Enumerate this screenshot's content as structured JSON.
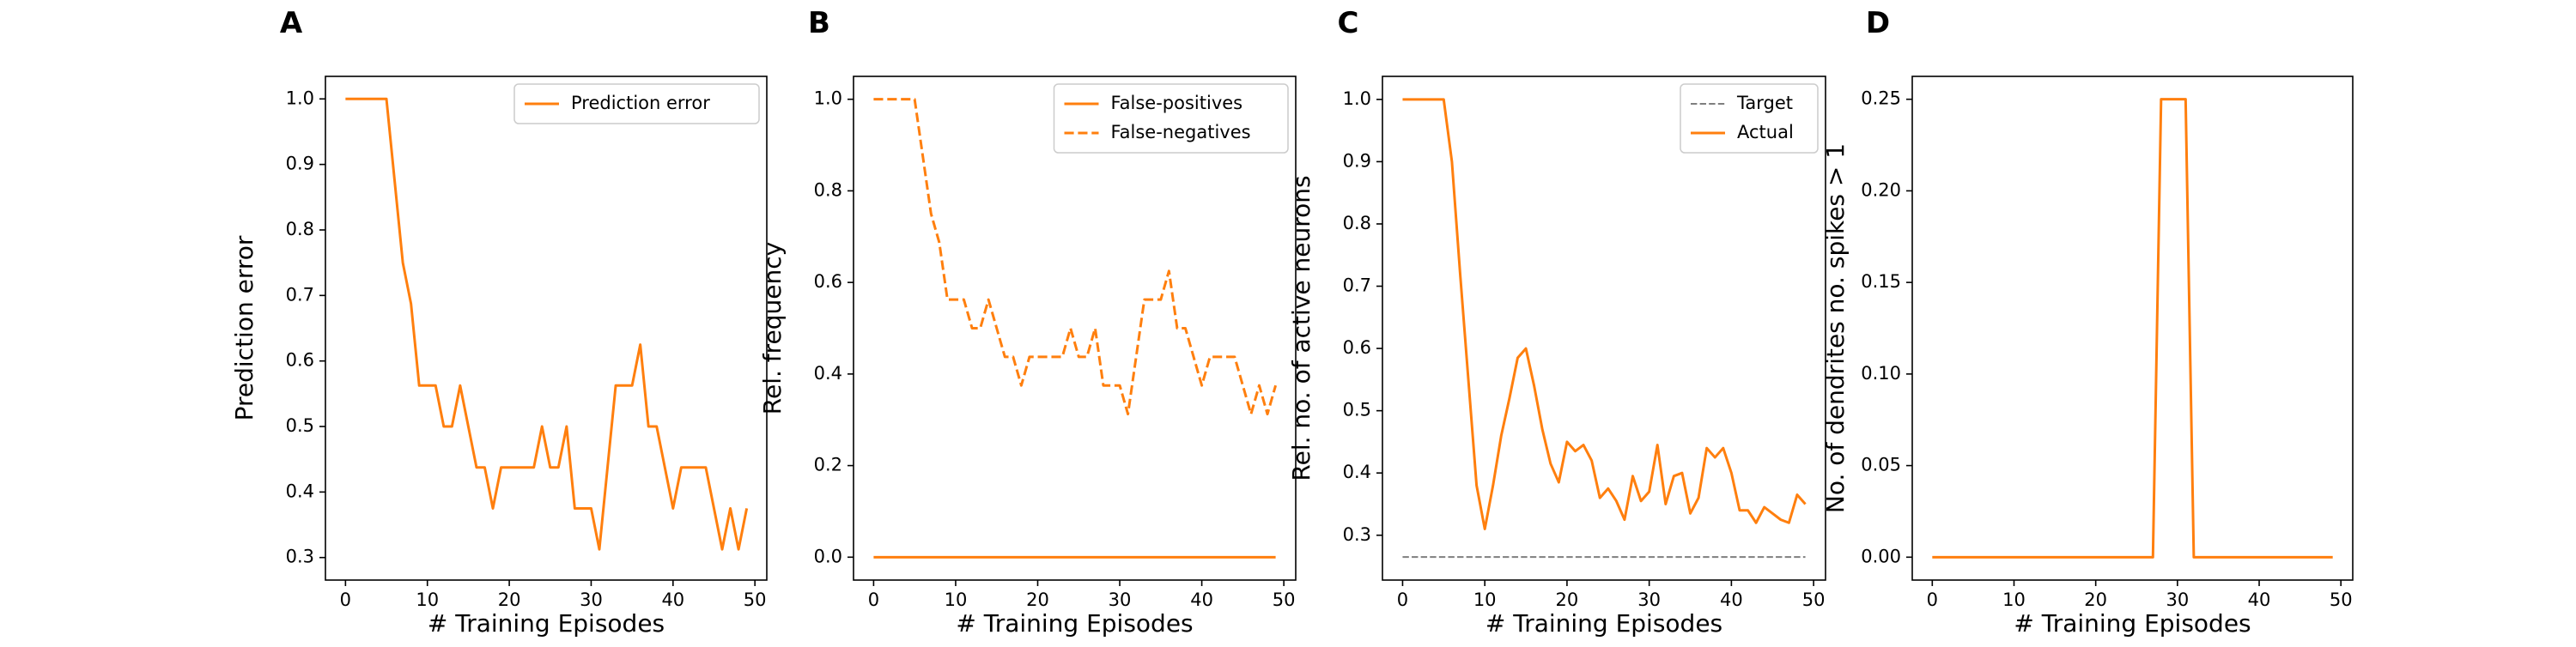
{
  "chart_data": [
    {
      "type": "line",
      "title": "A",
      "xlabel": "# Training Episodes",
      "ylabel": "Prediction error",
      "xlim": [
        -2.45,
        51.45
      ],
      "ylim": [
        0.2656,
        1.0344
      ],
      "xticks": [
        0,
        10,
        20,
        30,
        40,
        50
      ],
      "yticks": [
        0.3,
        0.4,
        0.5,
        0.6,
        0.7,
        0.8,
        0.9,
        {
          "value": 1,
          "label": "1.0"
        }
      ],
      "legend": "upper right",
      "x": [
        0,
        1,
        2,
        3,
        4,
        5,
        6,
        7,
        8,
        9,
        10,
        11,
        12,
        13,
        14,
        15,
        16,
        17,
        18,
        19,
        20,
        21,
        22,
        23,
        24,
        25,
        26,
        27,
        28,
        29,
        30,
        31,
        32,
        33,
        34,
        35,
        36,
        37,
        38,
        39,
        40,
        41,
        42,
        43,
        44,
        45,
        46,
        47,
        48,
        49
      ],
      "series": [
        {
          "name": "Prediction error",
          "color": "#ff7f0e",
          "linestyle": "solid",
          "linewidth": 3,
          "values": [
            1,
            1,
            1,
            1,
            1,
            1,
            0.875,
            0.75,
            0.6875,
            0.5625,
            0.5625,
            0.5625,
            0.5,
            0.5,
            0.5625,
            0.5,
            0.4375,
            0.4375,
            0.375,
            0.4375,
            0.4375,
            0.4375,
            0.4375,
            0.4375,
            0.5,
            0.4375,
            0.4375,
            0.5,
            0.375,
            0.375,
            0.375,
            0.3125,
            0.4375,
            0.5625,
            0.5625,
            0.5625,
            0.625,
            0.5,
            0.5,
            0.4375,
            0.375,
            0.4375,
            0.4375,
            0.4375,
            0.4375,
            0.375,
            0.3125,
            0.375,
            0.3125,
            0.375
          ]
        }
      ]
    },
    {
      "type": "line",
      "title": "B",
      "xlabel": "# Training Episodes",
      "ylabel": "Rel. frequency",
      "xlim": [
        -2.45,
        51.45
      ],
      "ylim": [
        -0.05,
        1.05
      ],
      "xticks": [
        0,
        10,
        20,
        30,
        40,
        50
      ],
      "yticks": [
        {
          "value": 0,
          "label": "0.0"
        },
        0.2,
        0.4,
        0.6,
        0.8,
        {
          "value": 1,
          "label": "1.0"
        }
      ],
      "legend": "upper right",
      "x": [
        0,
        1,
        2,
        3,
        4,
        5,
        6,
        7,
        8,
        9,
        10,
        11,
        12,
        13,
        14,
        15,
        16,
        17,
        18,
        19,
        20,
        21,
        22,
        23,
        24,
        25,
        26,
        27,
        28,
        29,
        30,
        31,
        32,
        33,
        34,
        35,
        36,
        37,
        38,
        39,
        40,
        41,
        42,
        43,
        44,
        45,
        46,
        47,
        48,
        49
      ],
      "series": [
        {
          "name": "False-positives",
          "color": "#ff7f0e",
          "linestyle": "solid",
          "linewidth": 3,
          "values": [
            0,
            0,
            0,
            0,
            0,
            0,
            0,
            0,
            0,
            0,
            0,
            0,
            0,
            0,
            0,
            0,
            0,
            0,
            0,
            0,
            0,
            0,
            0,
            0,
            0,
            0,
            0,
            0,
            0,
            0,
            0,
            0,
            0,
            0,
            0,
            0,
            0,
            0,
            0,
            0,
            0,
            0,
            0,
            0,
            0,
            0,
            0,
            0,
            0,
            0
          ]
        },
        {
          "name": "False-negatives",
          "color": "#ff7f0e",
          "linestyle": "dashed",
          "linewidth": 3,
          "values": [
            1,
            1,
            1,
            1,
            1,
            1,
            0.875,
            0.75,
            0.6875,
            0.5625,
            0.5625,
            0.5625,
            0.5,
            0.5,
            0.5625,
            0.5,
            0.4375,
            0.4375,
            0.375,
            0.4375,
            0.4375,
            0.4375,
            0.4375,
            0.4375,
            0.5,
            0.4375,
            0.4375,
            0.5,
            0.375,
            0.375,
            0.375,
            0.3125,
            0.4375,
            0.5625,
            0.5625,
            0.5625,
            0.625,
            0.5,
            0.5,
            0.4375,
            0.375,
            0.4375,
            0.4375,
            0.4375,
            0.4375,
            0.375,
            0.3125,
            0.375,
            0.3125,
            0.375
          ]
        }
      ]
    },
    {
      "type": "line",
      "title": "C",
      "xlabel": "# Training Episodes",
      "ylabel": "Rel. no. of active neurons",
      "xlim": [
        -2.45,
        51.45
      ],
      "ylim": [
        0.228,
        1.037
      ],
      "xticks": [
        0,
        10,
        20,
        30,
        40,
        50
      ],
      "yticks": [
        0.3,
        0.4,
        0.5,
        0.6,
        0.7,
        0.8,
        0.9,
        {
          "value": 1,
          "label": "1.0"
        }
      ],
      "legend": "upper right",
      "x": [
        0,
        1,
        2,
        3,
        4,
        5,
        6,
        7,
        8,
        9,
        10,
        11,
        12,
        13,
        14,
        15,
        16,
        17,
        18,
        19,
        20,
        21,
        22,
        23,
        24,
        25,
        26,
        27,
        28,
        29,
        30,
        31,
        32,
        33,
        34,
        35,
        36,
        37,
        38,
        39,
        40,
        41,
        42,
        43,
        44,
        45,
        46,
        47,
        48,
        49
      ],
      "series": [
        {
          "name": "Target",
          "color": "#7f7f7f",
          "linestyle": "dashed",
          "linewidth": 2,
          "values": [
            0.265,
            0.265,
            0.265,
            0.265,
            0.265,
            0.265,
            0.265,
            0.265,
            0.265,
            0.265,
            0.265,
            0.265,
            0.265,
            0.265,
            0.265,
            0.265,
            0.265,
            0.265,
            0.265,
            0.265,
            0.265,
            0.265,
            0.265,
            0.265,
            0.265,
            0.265,
            0.265,
            0.265,
            0.265,
            0.265,
            0.265,
            0.265,
            0.265,
            0.265,
            0.265,
            0.265,
            0.265,
            0.265,
            0.265,
            0.265,
            0.265,
            0.265,
            0.265,
            0.265,
            0.265,
            0.265,
            0.265,
            0.265,
            0.265,
            0.265
          ]
        },
        {
          "name": "Actual",
          "color": "#ff7f0e",
          "linestyle": "solid",
          "linewidth": 3,
          "values": [
            1,
            1,
            1,
            1,
            1,
            1,
            0.9,
            0.72,
            0.55,
            0.38,
            0.31,
            0.38,
            0.46,
            0.52,
            0.585,
            0.6,
            0.54,
            0.47,
            0.415,
            0.385,
            0.45,
            0.435,
            0.445,
            0.42,
            0.36,
            0.375,
            0.355,
            0.325,
            0.395,
            0.355,
            0.37,
            0.445,
            0.35,
            0.395,
            0.4,
            0.335,
            0.36,
            0.44,
            0.425,
            0.44,
            0.4,
            0.34,
            0.34,
            0.32,
            0.345,
            0.335,
            0.325,
            0.32,
            0.365,
            0.35
          ]
        }
      ]
    },
    {
      "type": "line",
      "title": "D",
      "xlabel": "# Training Episodes",
      "ylabel": "No. of dendrites no. spikes > 1",
      "xlim": [
        -2.45,
        51.45
      ],
      "ylim": [
        -0.0125,
        0.2625
      ],
      "xticks": [
        0,
        10,
        20,
        30,
        40,
        50
      ],
      "yticks": [
        {
          "value": 0,
          "label": "0.00"
        },
        0.05,
        {
          "value": 0.1,
          "label": "0.10"
        },
        0.15,
        {
          "value": 0.2,
          "label": "0.20"
        },
        0.25
      ],
      "x": [
        0,
        1,
        2,
        3,
        4,
        5,
        6,
        7,
        8,
        9,
        10,
        11,
        12,
        13,
        14,
        15,
        16,
        17,
        18,
        19,
        20,
        21,
        22,
        23,
        24,
        25,
        26,
        27,
        28,
        29,
        30,
        31,
        32,
        33,
        34,
        35,
        36,
        37,
        38,
        39,
        40,
        41,
        42,
        43,
        44,
        45,
        46,
        47,
        48,
        49
      ],
      "series": [
        {
          "color": "#ff7f0e",
          "linestyle": "solid",
          "linewidth": 3,
          "values": [
            0,
            0,
            0,
            0,
            0,
            0,
            0,
            0,
            0,
            0,
            0,
            0,
            0,
            0,
            0,
            0,
            0,
            0,
            0,
            0,
            0,
            0,
            0,
            0,
            0,
            0,
            0,
            0,
            0.25,
            0.25,
            0.25,
            0.25,
            0,
            0,
            0,
            0,
            0,
            0,
            0,
            0,
            0,
            0,
            0,
            0,
            0,
            0,
            0,
            0,
            0,
            0
          ]
        }
      ]
    }
  ]
}
